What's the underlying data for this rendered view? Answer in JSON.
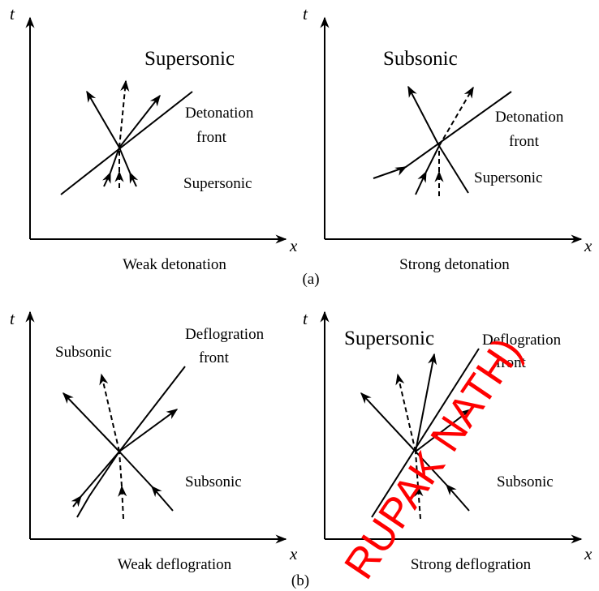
{
  "panels": [
    {
      "t_label": "t",
      "x_label": "x",
      "upper_region": "Supersonic",
      "front_label": [
        "Detonation",
        "front"
      ],
      "lower_region": "Supersonic",
      "caption": "Weak detonation"
    },
    {
      "t_label": "t",
      "x_label": "x",
      "upper_region": "Subsonic",
      "front_label": [
        "Detonation",
        "front"
      ],
      "lower_region": "Supersonic",
      "caption": "Strong detonation"
    },
    {
      "t_label": "t",
      "x_label": "x",
      "upper_region": "Subsonic",
      "front_label": [
        "Deflogration",
        "front"
      ],
      "lower_region": "Subsonic",
      "caption": "Weak deflogration"
    },
    {
      "t_label": "t",
      "x_label": "x",
      "upper_region": "Supersonic",
      "front_label": [
        "Deflogration",
        "front"
      ],
      "lower_region": "Subsonic",
      "caption": "Strong deflogration"
    }
  ],
  "group_labels": [
    "(a)",
    "(b)"
  ],
  "watermark": "RUPAK NATH)"
}
